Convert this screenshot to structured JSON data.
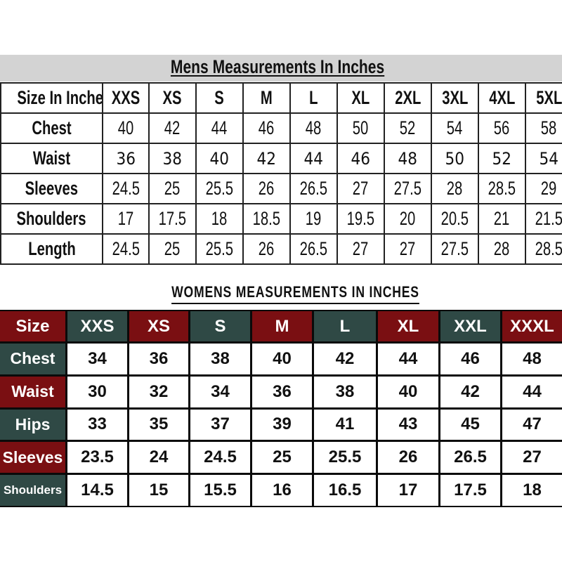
{
  "colors": {
    "red": "#7a0f12",
    "green": "#2f4945",
    "banner_gray": "#d3d3d3"
  },
  "mens": {
    "title": "Mens Measurements In Inches",
    "header": [
      "Size In Inches",
      "XXS",
      "XS",
      "S",
      "M",
      "L",
      "XL",
      "2XL",
      "3XL",
      "4XL",
      "5XL"
    ],
    "rows": [
      {
        "label": "Chest",
        "values": [
          "40",
          "42",
          "44",
          "46",
          "48",
          "50",
          "52",
          "54",
          "56",
          "58"
        ]
      },
      {
        "label": "Waist",
        "values": [
          "36",
          "38",
          "40",
          "42",
          "44",
          "46",
          "48",
          "50",
          "52",
          "54"
        ]
      },
      {
        "label": "Sleeves",
        "values": [
          "24.5",
          "25",
          "25.5",
          "26",
          "26.5",
          "27",
          "27.5",
          "28",
          "28.5",
          "29"
        ]
      },
      {
        "label": "Shoulders",
        "values": [
          "17",
          "17.5",
          "18",
          "18.5",
          "19",
          "19.5",
          "20",
          "20.5",
          "21",
          "21.5"
        ]
      },
      {
        "label": "Length",
        "values": [
          "24.5",
          "25",
          "25.5",
          "26",
          "26.5",
          "27",
          "27",
          "27.5",
          "28",
          "28.5"
        ]
      }
    ]
  },
  "womens": {
    "title": "WOMENS MEASUREMENTS IN INCHES",
    "header": [
      "Size",
      "XXS",
      "XS",
      "S",
      "M",
      "L",
      "XL",
      "XXL",
      "XXXL"
    ],
    "rows": [
      {
        "label": "Chest",
        "values": [
          "34",
          "36",
          "38",
          "40",
          "42",
          "44",
          "46",
          "48"
        ]
      },
      {
        "label": "Waist",
        "values": [
          "30",
          "32",
          "34",
          "36",
          "38",
          "40",
          "42",
          "44"
        ]
      },
      {
        "label": "Hips",
        "values": [
          "33",
          "35",
          "37",
          "39",
          "41",
          "43",
          "45",
          "47"
        ]
      },
      {
        "label": "Sleeves",
        "values": [
          "23.5",
          "24",
          "24.5",
          "25",
          "25.5",
          "26",
          "26.5",
          "27"
        ]
      },
      {
        "label": "Shoulders",
        "values": [
          "14.5",
          "15",
          "15.5",
          "16",
          "16.5",
          "17",
          "17.5",
          "18"
        ]
      }
    ]
  }
}
